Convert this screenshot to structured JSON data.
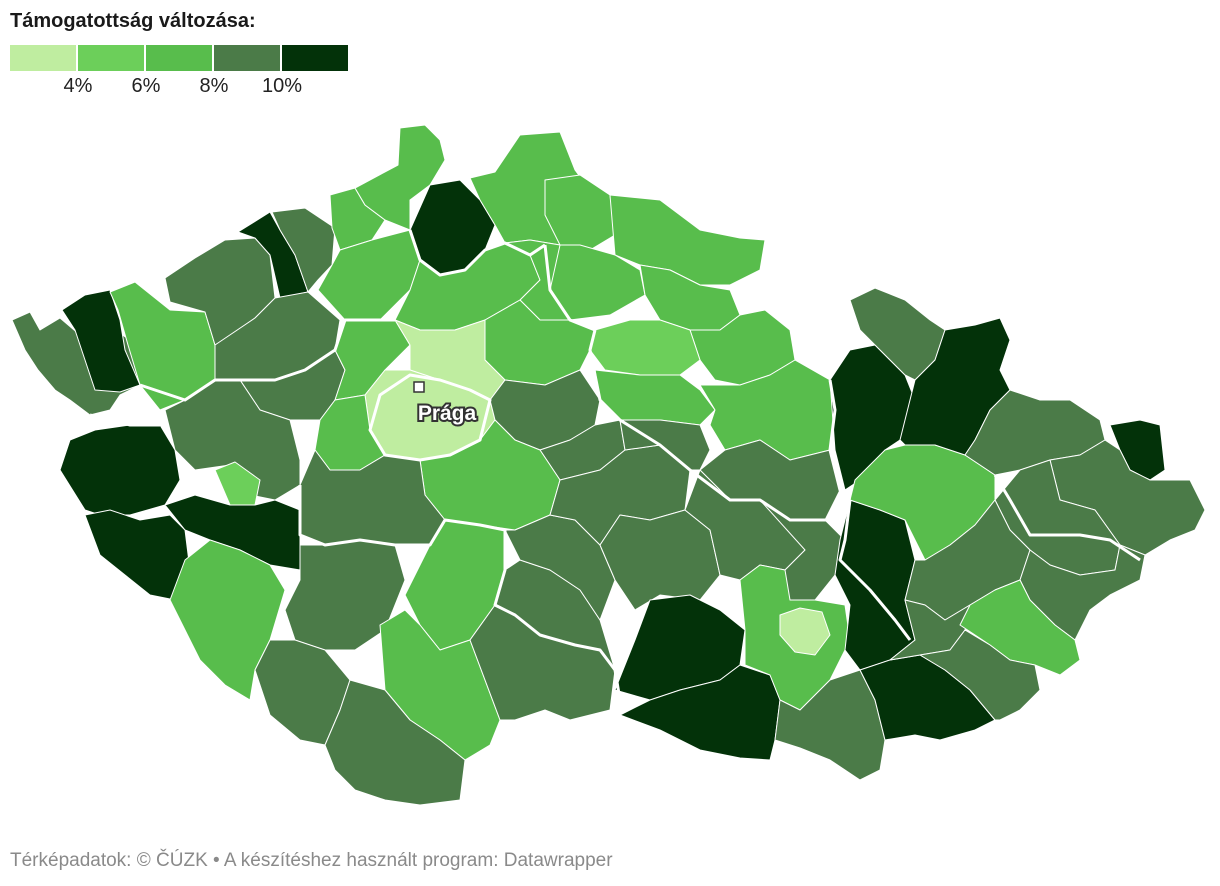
{
  "legend": {
    "title": "Támogatottság változása:",
    "colors": [
      "#bfeda0",
      "#6ccf5a",
      "#58bd4c",
      "#4b7b48",
      "#033209"
    ],
    "ticks": [
      "4%",
      "6%",
      "8%",
      "10%"
    ]
  },
  "map": {
    "city_label": "Prága",
    "region_colors": {
      "lightest": "#bfeda0",
      "light": "#6ccf5a",
      "medium": "#58bd4c",
      "gray_green": "#4b7b48",
      "dark": "#033209"
    }
  },
  "footer": {
    "credits": "Térképadatok: © ČÚZK  • A készítéshez használt program: Datawrapper"
  }
}
